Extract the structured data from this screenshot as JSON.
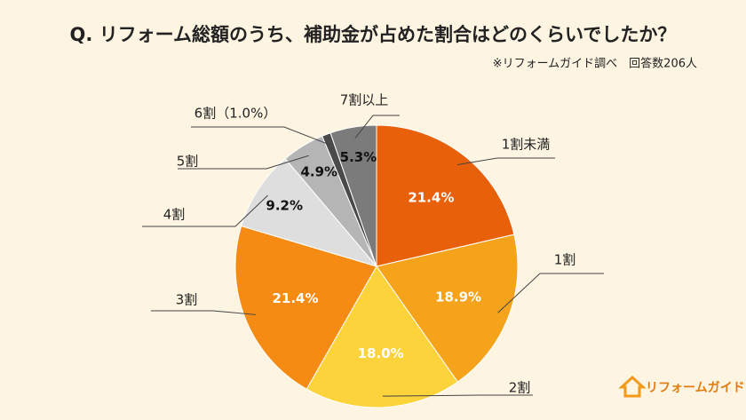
{
  "chart_data": {
    "type": "pie",
    "title": "Q. リフォーム総額のうち、補助金が占めた割合はどのくらいでしたか？",
    "subtitle": "※リフォームガイド調べ　回答数206人",
    "brand": "リフォームガイド",
    "categories": [
      "1割未満",
      "1割",
      "2割",
      "3割",
      "4割",
      "5割",
      "6割（1.0%）",
      "7割以上"
    ],
    "values": [
      21.4,
      18.9,
      18.0,
      21.4,
      9.2,
      4.9,
      1.0,
      5.3
    ],
    "value_labels": [
      "21.4%",
      "18.9%",
      "18.0%",
      "21.4%",
      "9.2%",
      "4.9%",
      null,
      "5.3%"
    ],
    "colors": [
      "#e8600a",
      "#f5a31a",
      "#fdd33c",
      "#f58b12",
      "#dedede",
      "#b5b5b5",
      "#4a4a4a",
      "#7b7b7b"
    ]
  }
}
